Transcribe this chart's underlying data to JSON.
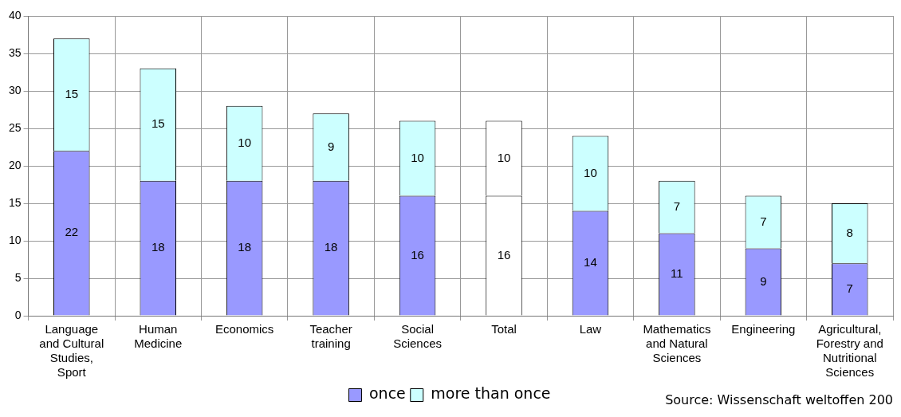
{
  "chart_data": {
    "type": "bar",
    "stacked": true,
    "categories": [
      "Language and Cultural Studies, Sport",
      "Human Medicine",
      "Economics",
      "Teacher training",
      "Social Sciences",
      "Total",
      "Law",
      "Mathematics and Natural Sciences",
      "Engineering",
      "Agricultural, Forestry and Nutritional Sciences"
    ],
    "series": [
      {
        "name": "once",
        "color": "#9999ff",
        "colors": [
          "#9999ff",
          "#9999ff",
          "#9999ff",
          "#9999ff",
          "#9999ff",
          "#ffffff",
          "#9999ff",
          "#9999ff",
          "#9999ff",
          "#9999ff"
        ],
        "values": [
          22,
          18,
          18,
          18,
          16,
          16,
          14,
          11,
          9,
          7
        ]
      },
      {
        "name": "more than once",
        "color": "#ccffff",
        "colors": [
          "#ccffff",
          "#ccffff",
          "#ccffff",
          "#ccffff",
          "#ccffff",
          "#ffffff",
          "#ccffff",
          "#ccffff",
          "#ccffff",
          "#ccffff"
        ],
        "values": [
          15,
          15,
          10,
          9,
          10,
          10,
          10,
          7,
          7,
          8
        ]
      }
    ],
    "ylim": [
      0,
      40
    ],
    "yticks": [
      0,
      5,
      10,
      15,
      20,
      25,
      30,
      35,
      40
    ],
    "grid": true,
    "legend": "bottom",
    "data_labels": true,
    "annotations": [
      "Source: Wissenschaft weltoffen 200"
    ]
  }
}
